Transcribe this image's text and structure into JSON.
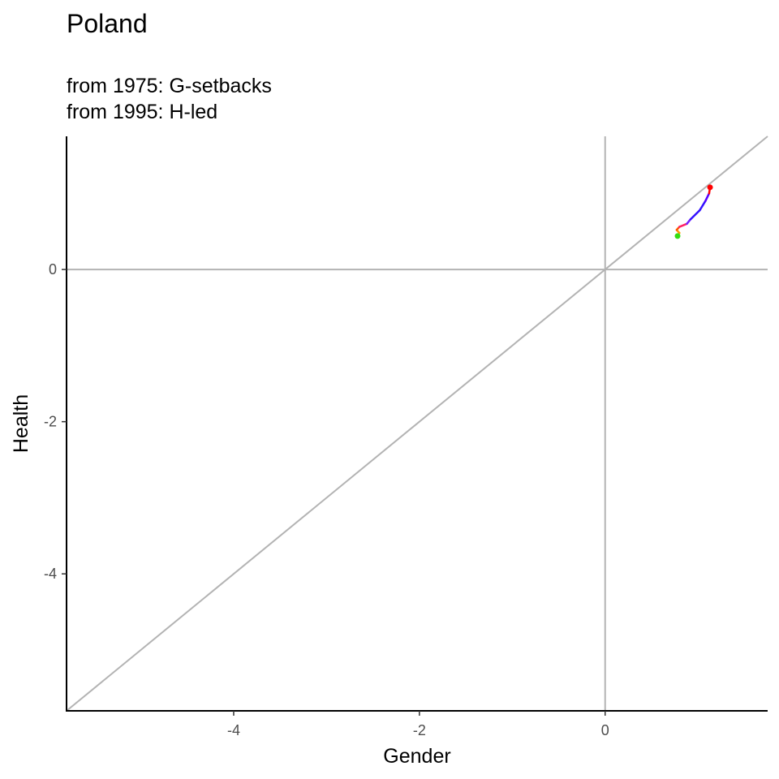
{
  "chart_data": {
    "type": "line",
    "title": "Poland",
    "subtitle_lines": [
      "from 1975:  G-setbacks",
      "from 1995:  H-led"
    ],
    "xlabel": "Gender",
    "ylabel": "Health",
    "xlim": [
      -5.8,
      1.75
    ],
    "ylim": [
      -5.8,
      1.75
    ],
    "x_ticks": [
      -4,
      -2,
      0
    ],
    "y_ticks": [
      -4,
      -2,
      0
    ],
    "reference_lines": {
      "hline_y": 0,
      "vline_x": 0,
      "diagonal": "y = x",
      "color": "#b3b3b3"
    },
    "grid": false,
    "trajectory": {
      "points": [
        {
          "x": 0.78,
          "y": 0.44,
          "color": "#33dd11"
        },
        {
          "x": 0.8,
          "y": 0.48,
          "color": "#e6c100"
        },
        {
          "x": 0.77,
          "y": 0.52,
          "color": "#ff9900"
        },
        {
          "x": 0.8,
          "y": 0.56,
          "color": "#ff5500"
        },
        {
          "x": 0.88,
          "y": 0.6,
          "color": "#ff2266"
        },
        {
          "x": 0.92,
          "y": 0.66,
          "color": "#7722ff"
        },
        {
          "x": 1.02,
          "y": 0.78,
          "color": "#3311ff"
        },
        {
          "x": 1.08,
          "y": 0.9,
          "color": "#3311ff"
        },
        {
          "x": 1.12,
          "y": 1.0,
          "color": "#5500ff"
        },
        {
          "x": 1.13,
          "y": 1.08,
          "color": "#ff0000"
        }
      ],
      "start_color": "#33dd11",
      "end_color": "#ff0000"
    }
  }
}
